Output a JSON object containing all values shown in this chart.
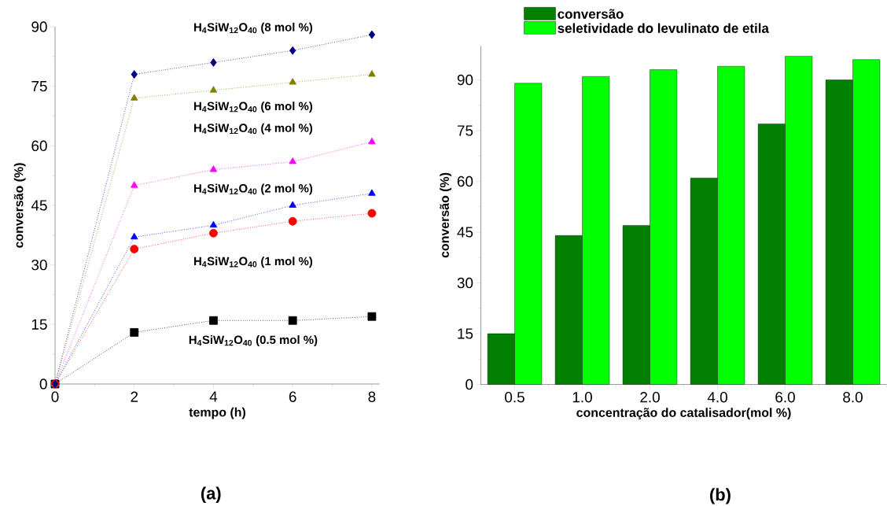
{
  "chart_data": [
    {
      "type": "line",
      "xlabel": "tempo (h)",
      "ylabel": "conversão (%)",
      "x": [
        0,
        2,
        4,
        6,
        8
      ],
      "xlim": [
        0,
        8.2
      ],
      "ylim": [
        0,
        90
      ],
      "xticks": [
        0,
        2,
        4,
        6,
        8
      ],
      "yticks": [
        0,
        15,
        30,
        45,
        60,
        75,
        90
      ],
      "line_style": "dotted",
      "annotations": [
        "(a)"
      ],
      "series": [
        {
          "name": "H$_{4}$SiW$_{12}$O$_{40}$ (0.5 mol %)",
          "color": "#000000",
          "marker": "square",
          "values": [
            0,
            13,
            16,
            16,
            17
          ]
        },
        {
          "name": "H$_{4}$SiW$_{12}$O$_{40}$ (1 mol %)",
          "color": "#ff0000",
          "marker": "circle",
          "values": [
            0,
            34,
            38,
            41,
            43
          ]
        },
        {
          "name": "H$_{4}$SiW$_{12}$O$_{40}$ (2 mol %)",
          "color": "#0000ff",
          "marker": "triangle",
          "values": [
            0,
            37,
            40,
            45,
            48
          ]
        },
        {
          "name": "H$_{4}$SiW$_{12}$O$_{40}$ (4 mol %)",
          "color": "#ff00ff",
          "marker": "triangle",
          "values": [
            0,
            50,
            54,
            56,
            61
          ]
        },
        {
          "name": "H$_{4}$SiW$_{12}$O$_{40}$ (6 mol %)",
          "color": "#808000",
          "marker": "triangle",
          "values": [
            0,
            72,
            74,
            76,
            78
          ]
        },
        {
          "name": "H$_{4}$SiW$_{12}$O$_{40}$ (8 mol %)",
          "color": "#000080",
          "marker": "diamond",
          "values": [
            0,
            78,
            81,
            84,
            88
          ]
        }
      ]
    },
    {
      "type": "bar",
      "xlabel": "concentração do catalisador(mol %)",
      "ylabel": "conversão (%)",
      "categories": [
        "0.5",
        "1.0",
        "2.0",
        "4.0",
        "6.0",
        "8.0"
      ],
      "ylim": [
        0,
        100
      ],
      "yticks": [
        0,
        15,
        30,
        45,
        60,
        75,
        90
      ],
      "legend": "top",
      "annotations": [
        "(b)"
      ],
      "series": [
        {
          "name": "conversão",
          "color": "#007f00",
          "values": [
            15,
            44,
            47,
            61,
            77,
            90
          ]
        },
        {
          "name": "seletividade do levulinato de etila",
          "color": "#00ff00",
          "values": [
            89,
            91,
            93,
            94,
            97,
            96
          ]
        }
      ]
    }
  ]
}
